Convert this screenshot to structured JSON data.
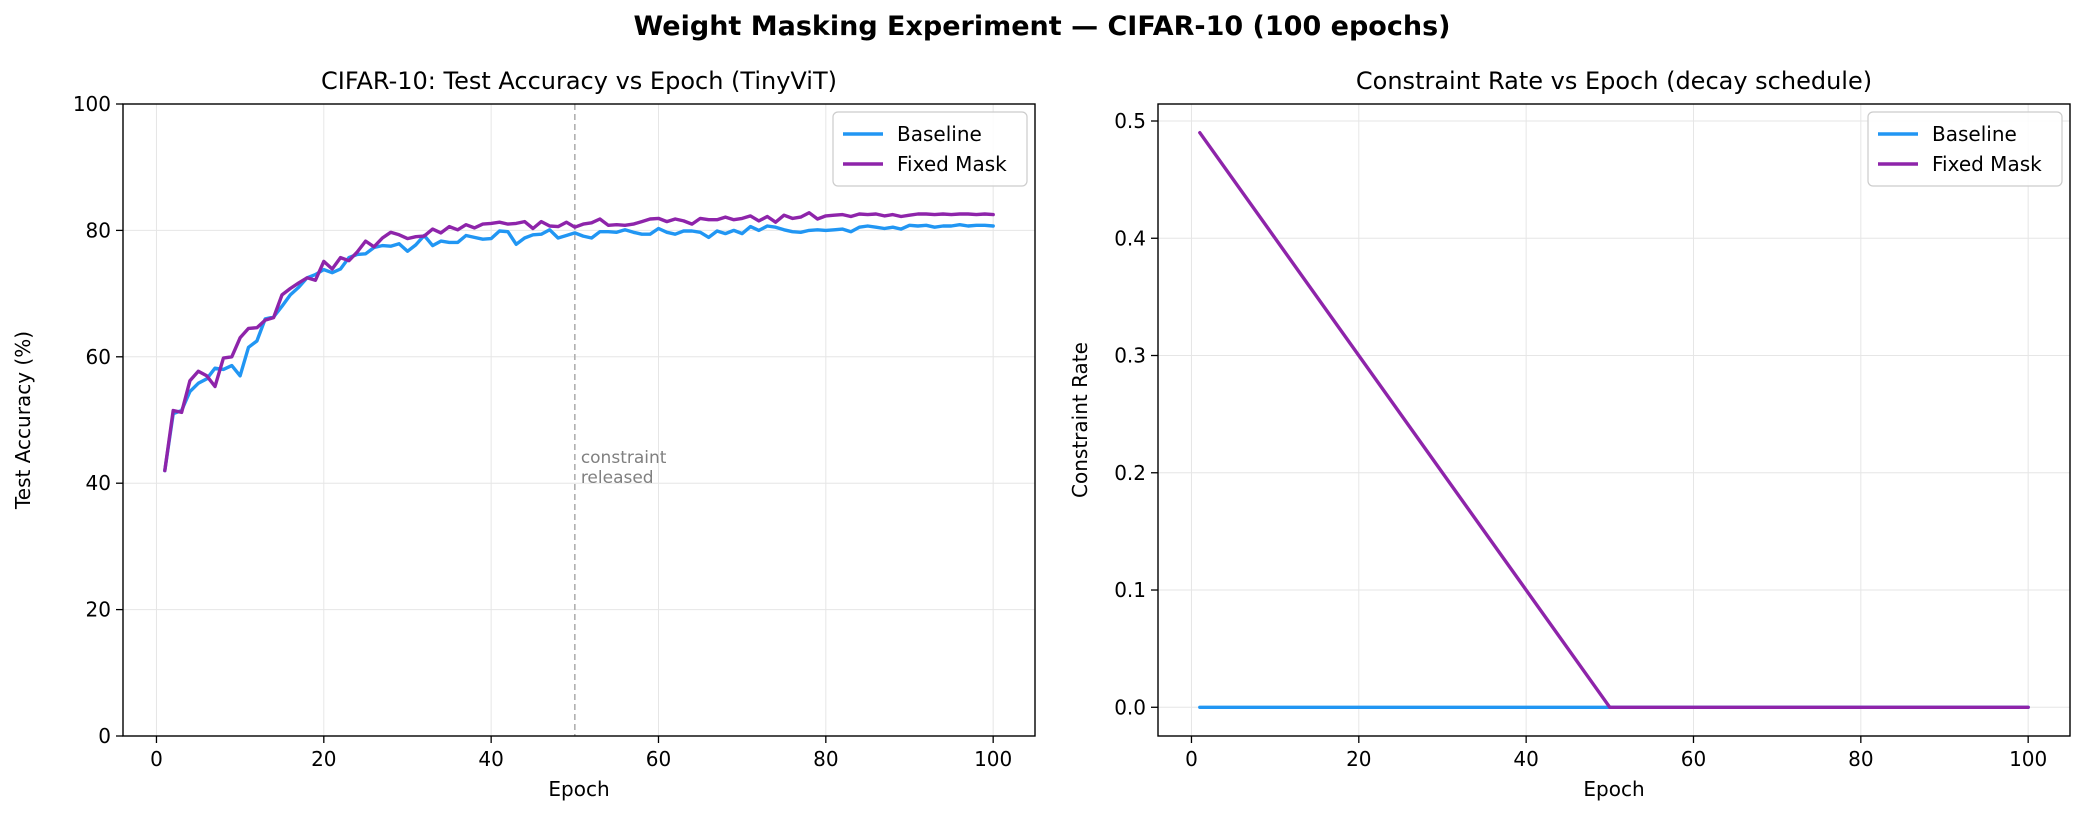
{
  "suptitle": "Weight Masking Experiment — CIFAR-10 (100 epochs)",
  "chart_data": [
    {
      "type": "line",
      "title": "CIFAR-10: Test Accuracy vs Epoch (TinyViT)",
      "xlabel": "Epoch",
      "ylabel": "Test Accuracy (%)",
      "xlim": [
        -4,
        105
      ],
      "ylim": [
        0,
        100
      ],
      "xticks": [
        0,
        20,
        40,
        60,
        80,
        100
      ],
      "yticks": [
        0,
        20,
        40,
        60,
        80,
        100
      ],
      "grid": true,
      "legend_position": "top-right",
      "annotation": {
        "text": [
          "constraint",
          "released"
        ],
        "x": 50,
        "y": 40,
        "vline_x": 50
      },
      "series": [
        {
          "name": "Baseline",
          "color": "#2196F3",
          "x": [
            1,
            2,
            3,
            4,
            5,
            6,
            7,
            8,
            9,
            10,
            11,
            12,
            13,
            14,
            15,
            16,
            17,
            18,
            19,
            20,
            21,
            22,
            23,
            24,
            25,
            26,
            27,
            28,
            29,
            30,
            31,
            32,
            33,
            34,
            35,
            36,
            37,
            38,
            39,
            40,
            41,
            42,
            43,
            44,
            45,
            46,
            47,
            48,
            49,
            50,
            51,
            52,
            53,
            54,
            55,
            56,
            57,
            58,
            59,
            60,
            61,
            62,
            63,
            64,
            65,
            66,
            67,
            68,
            69,
            70,
            71,
            72,
            73,
            74,
            75,
            76,
            77,
            78,
            79,
            80,
            81,
            82,
            83,
            84,
            85,
            86,
            87,
            88,
            89,
            90,
            91,
            92,
            93,
            94,
            95,
            96,
            97,
            98,
            99,
            100
          ],
          "y": [
            42.0,
            51.0,
            51.5,
            54.5,
            55.8,
            56.5,
            58.2,
            58.0,
            58.6,
            57.0,
            61.5,
            62.5,
            66.0,
            66.3,
            68.0,
            69.8,
            71.0,
            72.5,
            73.0,
            73.8,
            73.3,
            73.9,
            75.7,
            76.2,
            76.3,
            77.3,
            77.6,
            77.5,
            77.9,
            76.7,
            77.7,
            79.2,
            77.6,
            78.3,
            78.1,
            78.1,
            79.2,
            78.9,
            78.6,
            78.7,
            79.9,
            79.8,
            77.8,
            78.8,
            79.3,
            79.4,
            80.1,
            78.8,
            79.2,
            79.6,
            79.1,
            78.8,
            79.8,
            79.8,
            79.7,
            80.1,
            79.7,
            79.4,
            79.4,
            80.3,
            79.7,
            79.4,
            79.9,
            79.9,
            79.7,
            78.9,
            79.9,
            79.5,
            80.0,
            79.5,
            80.6,
            80.0,
            80.7,
            80.5,
            80.1,
            79.8,
            79.7,
            80.0,
            80.1,
            80.0,
            80.1,
            80.2,
            79.8,
            80.5,
            80.7,
            80.5,
            80.3,
            80.5,
            80.2,
            80.8,
            80.7,
            80.8,
            80.5,
            80.7,
            80.7,
            80.9,
            80.7,
            80.8,
            80.8,
            80.7
          ]
        },
        {
          "name": "Fixed Mask",
          "color": "#8E24AA",
          "x": [
            1,
            2,
            3,
            4,
            5,
            6,
            7,
            8,
            9,
            10,
            11,
            12,
            13,
            14,
            15,
            16,
            17,
            18,
            19,
            20,
            21,
            22,
            23,
            24,
            25,
            26,
            27,
            28,
            29,
            30,
            31,
            32,
            33,
            34,
            35,
            36,
            37,
            38,
            39,
            40,
            41,
            42,
            43,
            44,
            45,
            46,
            47,
            48,
            49,
            50,
            51,
            52,
            53,
            54,
            55,
            56,
            57,
            58,
            59,
            60,
            61,
            62,
            63,
            64,
            65,
            66,
            67,
            68,
            69,
            70,
            71,
            72,
            73,
            74,
            75,
            76,
            77,
            78,
            79,
            80,
            81,
            82,
            83,
            84,
            85,
            86,
            87,
            88,
            89,
            90,
            91,
            92,
            93,
            94,
            95,
            96,
            97,
            98,
            99,
            100
          ],
          "y": [
            42.0,
            51.5,
            51.2,
            56.2,
            57.7,
            57.0,
            55.3,
            59.8,
            60.0,
            63.0,
            64.5,
            64.6,
            65.8,
            66.2,
            69.8,
            70.8,
            71.7,
            72.5,
            72.1,
            75.1,
            73.9,
            75.7,
            75.2,
            76.6,
            78.3,
            77.4,
            78.8,
            79.7,
            79.3,
            78.7,
            79.0,
            79.1,
            80.2,
            79.6,
            80.6,
            80.1,
            80.9,
            80.4,
            81.0,
            81.1,
            81.3,
            81.0,
            81.1,
            81.4,
            80.3,
            81.4,
            80.7,
            80.6,
            81.3,
            80.5,
            81.0,
            81.2,
            81.8,
            80.8,
            80.9,
            80.8,
            81.0,
            81.4,
            81.8,
            81.9,
            81.4,
            81.8,
            81.5,
            81.0,
            81.9,
            81.7,
            81.7,
            82.1,
            81.7,
            81.9,
            82.3,
            81.5,
            82.2,
            81.3,
            82.4,
            81.9,
            82.1,
            82.8,
            81.8,
            82.3,
            82.4,
            82.5,
            82.2,
            82.6,
            82.5,
            82.6,
            82.3,
            82.5,
            82.2,
            82.4,
            82.6,
            82.6,
            82.5,
            82.6,
            82.5,
            82.6,
            82.6,
            82.5,
            82.6,
            82.5
          ]
        }
      ]
    },
    {
      "type": "line",
      "title": "Constraint Rate vs Epoch (decay schedule)",
      "xlabel": "Epoch",
      "ylabel": "Constraint Rate",
      "xlim": [
        -4,
        105
      ],
      "ylim": [
        -0.0245,
        0.5145
      ],
      "xticks": [
        0,
        20,
        40,
        60,
        80,
        100
      ],
      "yticks": [
        0.0,
        0.1,
        0.2,
        0.3,
        0.4,
        0.5
      ],
      "ytick_labels": [
        "0.0",
        "0.1",
        "0.2",
        "0.3",
        "0.4",
        "0.5"
      ],
      "grid": true,
      "legend_position": "top-right",
      "series": [
        {
          "name": "Baseline",
          "color": "#2196F3",
          "x": [
            1,
            100
          ],
          "y": [
            0.0,
            0.0
          ]
        },
        {
          "name": "Fixed Mask",
          "color": "#8E24AA",
          "x": [
            1,
            50,
            100
          ],
          "y": [
            0.49,
            0.0,
            0.0
          ]
        }
      ]
    }
  ]
}
